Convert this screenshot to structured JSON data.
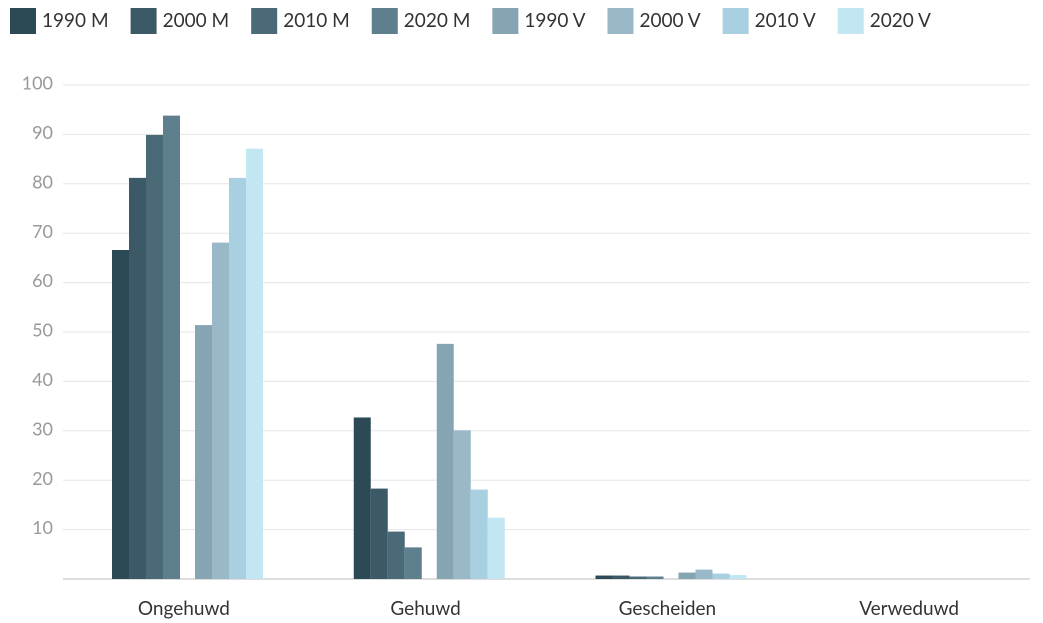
{
  "chart_data": {
    "type": "bar",
    "categories": [
      "Ongehuwd",
      "Gehuwd",
      "Gescheiden",
      "Verweduwd"
    ],
    "series": [
      {
        "name": "1990 M",
        "color": "#2b4a56",
        "values": [
          66.6,
          32.7,
          0.7,
          0
        ]
      },
      {
        "name": "2000 M",
        "color": "#3b5966",
        "values": [
          81.2,
          18.3,
          0.7,
          0
        ]
      },
      {
        "name": "2010 M",
        "color": "#4a6a78",
        "values": [
          89.9,
          9.6,
          0.5,
          0
        ]
      },
      {
        "name": "2020 M",
        "color": "#5e7f8e",
        "values": [
          93.8,
          6.4,
          0.5,
          0
        ]
      },
      {
        "name": "1990 V",
        "color": "#86a5b3",
        "values": [
          51.4,
          47.6,
          1.3,
          0
        ]
      },
      {
        "name": "2000 V",
        "color": "#9ab9c8",
        "values": [
          68.1,
          30.1,
          1.9,
          0
        ]
      },
      {
        "name": "2010 V",
        "color": "#a9d0e0",
        "values": [
          81.2,
          18.1,
          1.1,
          0
        ]
      },
      {
        "name": "2020 V",
        "color": "#c3e6f3",
        "values": [
          87.1,
          12.4,
          0.8,
          0
        ]
      }
    ],
    "ylim": [
      0,
      100
    ],
    "yticks": [
      10,
      20,
      30,
      40,
      50,
      60,
      70,
      80,
      90,
      100
    ],
    "grid": true
  }
}
